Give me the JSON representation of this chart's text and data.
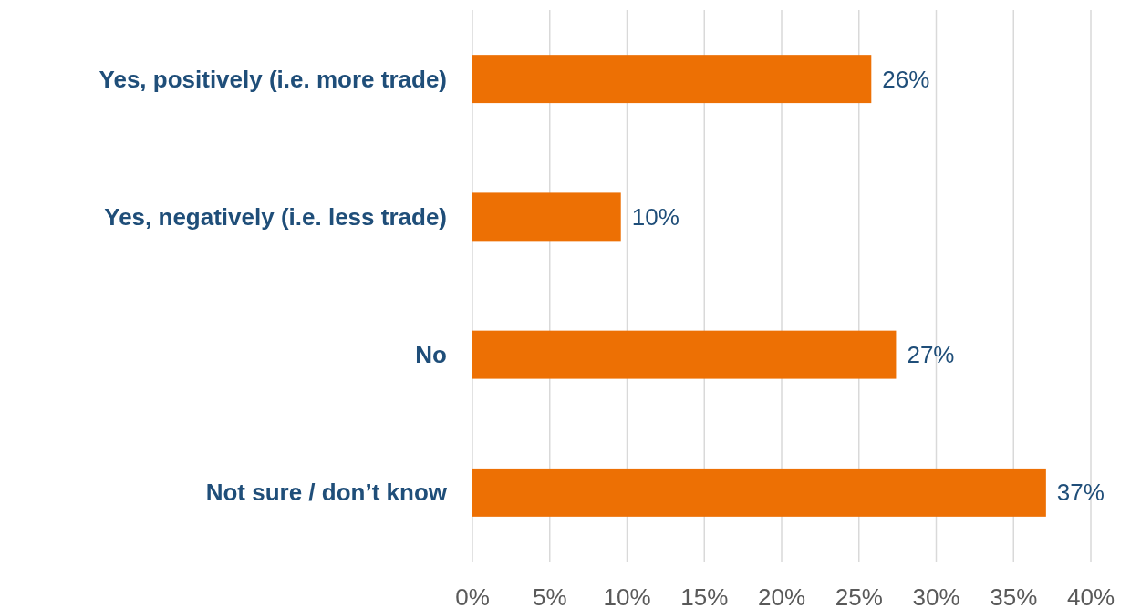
{
  "chart_data": {
    "type": "bar",
    "orientation": "horizontal",
    "categories": [
      "Yes, positively (i.e. more trade)",
      "Yes, negatively (i.e. less trade)",
      "No",
      "Not sure / don’t know"
    ],
    "values": [
      25.8,
      9.6,
      27.4,
      37.1
    ],
    "value_labels": [
      "26%",
      "10%",
      "27%",
      "37%"
    ],
    "color": "#ed7004",
    "xlim": [
      0,
      40
    ],
    "xticks": [
      {
        "value": 0,
        "label": "0%"
      },
      {
        "value": 5,
        "label": "5%"
      },
      {
        "value": 10,
        "label": "10%"
      },
      {
        "value": 15,
        "label": "15%"
      },
      {
        "value": 20,
        "label": "20%"
      },
      {
        "value": 25,
        "label": "25%"
      },
      {
        "value": 30,
        "label": "30%"
      },
      {
        "value": 35,
        "label": "35%"
      },
      {
        "value": 40,
        "label": "40%"
      }
    ],
    "grid": "x"
  }
}
